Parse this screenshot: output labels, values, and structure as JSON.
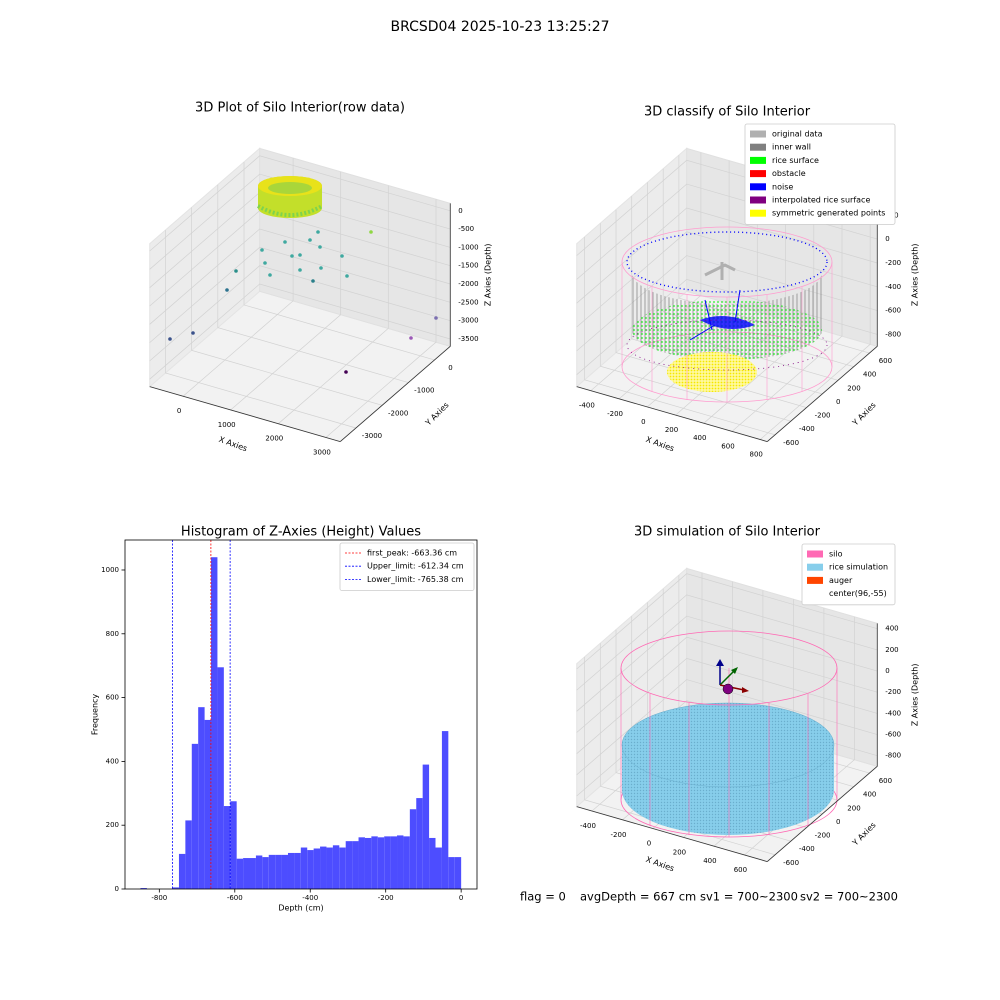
{
  "title": "BRCSD04 2025-10-23 13:25:27",
  "chart_data": [
    {
      "type": "scatter3d",
      "title": "3D Plot of Silo Interior(row data)",
      "xlabel": "X Axies",
      "ylabel": "Y Axies",
      "zlabel": "Z Axies (Depth)",
      "xlim": [
        -700,
        3300
      ],
      "ylim": [
        -3600,
        600
      ],
      "zlim": [
        -3700,
        200
      ],
      "xticks": [
        0,
        1000,
        2000,
        3000
      ],
      "yticks": [
        -3000,
        -2000,
        -1000,
        0
      ],
      "zticks": [
        -3500,
        -3000,
        -2500,
        -2000,
        -1500,
        -1000,
        -500,
        0
      ]
    },
    {
      "type": "scatter3d",
      "title": "3D classify of Silo Interior",
      "xlabel": "X Axies",
      "ylabel": "Y Axies",
      "zlabel": "Z Axies (Depth)",
      "xlim": [
        -500,
        850
      ],
      "ylim": [
        -700,
        700
      ],
      "zlim": [
        -900,
        300
      ],
      "xticks": [
        -400,
        -200,
        0,
        200,
        400,
        600,
        800
      ],
      "yticks": [
        -600,
        -400,
        -200,
        0,
        200,
        400,
        600
      ],
      "zticks": [
        -800,
        -600,
        -400,
        -200,
        0,
        200
      ],
      "legend_loc": "upper right",
      "legend": [
        {
          "name": "original data",
          "color": "#b0b0b0"
        },
        {
          "name": "inner wall",
          "color": "#808080"
        },
        {
          "name": "rice surface",
          "color": "#00ff00"
        },
        {
          "name": "obstacle",
          "color": "#ff0000"
        },
        {
          "name": "noise",
          "color": "#0000ff"
        },
        {
          "name": "interpolated rice surface",
          "color": "#800080"
        },
        {
          "name": "symmetric generated points",
          "color": "#ffff00"
        }
      ]
    },
    {
      "type": "histogram",
      "title": "Histogram of Z-Axies (Height) Values",
      "xlabel": "Depth (cm)",
      "ylabel": "Frequency",
      "color": "#4d4dff",
      "bins": [
        -850,
        -833,
        -816,
        -799,
        -782,
        -765,
        -748,
        -731,
        -714,
        -697,
        -680,
        -663,
        -646,
        -629,
        -612,
        -595,
        -578,
        -561,
        -544,
        -527,
        -510,
        -493,
        -476,
        -459,
        -442,
        -425,
        -408,
        -391,
        -374,
        -357,
        -340,
        -323,
        -306,
        -289,
        -272,
        -255,
        -238,
        -221,
        -204,
        -187,
        -170,
        -153,
        -136,
        -119,
        -102,
        -85,
        -68,
        -51,
        -34,
        -17,
        0
      ],
      "values": [
        3,
        0,
        0,
        0,
        0,
        5,
        110,
        215,
        455,
        570,
        530,
        1040,
        695,
        260,
        275,
        95,
        97,
        97,
        105,
        100,
        107,
        107,
        107,
        113,
        113,
        130,
        122,
        127,
        133,
        130,
        137,
        130,
        150,
        150,
        162,
        160,
        165,
        162,
        165,
        165,
        168,
        165,
        250,
        285,
        390,
        160,
        130,
        495,
        100,
        100
      ],
      "xlim": [
        -891,
        42
      ],
      "ylim": [
        0,
        1094
      ],
      "xticks": [
        -800,
        -600,
        -400,
        -200,
        0
      ],
      "yticks": [
        0,
        200,
        400,
        600,
        800,
        1000
      ],
      "legend_loc": "upper right",
      "vlines": [
        {
          "name": "first_peak: -663.36 cm",
          "value": -663.36,
          "color": "#ff0000"
        },
        {
          "name": "Upper_limit: -612.34 cm",
          "value": -612.34,
          "color": "#0000ff"
        },
        {
          "name": "Lower_limit: -765.38 cm",
          "value": -765.38,
          "color": "#0000ff"
        }
      ]
    },
    {
      "type": "scatter3d",
      "title": "3D simulation of Silo Interior",
      "xlabel": "X Axies",
      "ylabel": "Y Axies",
      "zlabel": "Z Axies (Depth)",
      "xlim": [
        -500,
        750
      ],
      "ylim": [
        -700,
        700
      ],
      "zlim": [
        -900,
        450
      ],
      "xticks": [
        -400,
        -200,
        0,
        200,
        400,
        600
      ],
      "yticks": [
        -600,
        -400,
        -200,
        0,
        200,
        400,
        600
      ],
      "zticks": [
        -800,
        -600,
        -400,
        -200,
        0,
        200,
        400
      ],
      "legend_loc": "upper right",
      "legend": [
        {
          "name": "silo",
          "color": "#ff69b4"
        },
        {
          "name": "rice simulation",
          "color": "#87ceeb"
        },
        {
          "name": "auger",
          "color": "#ff4500"
        },
        {
          "name": "center(96,-55)",
          "color": "#ffffff"
        }
      ]
    }
  ],
  "footer": [
    "flag = 0",
    "avgDepth = 667 cm",
    "sv1 = 700~2300",
    "sv2 = 700~2300"
  ]
}
